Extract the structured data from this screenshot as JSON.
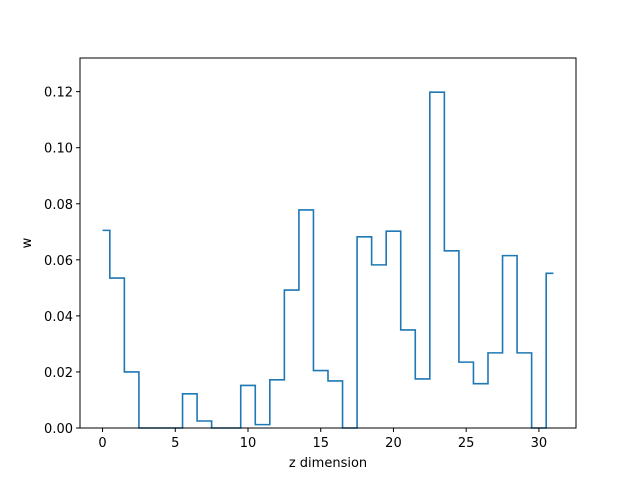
{
  "chart_data": {
    "type": "step",
    "title": "",
    "xlabel": "z dimension",
    "ylabel": "w",
    "xlim": [
      -1.55,
      32.55
    ],
    "ylim": [
      0,
      0.132
    ],
    "xticks": [
      0,
      5,
      10,
      15,
      20,
      25,
      30
    ],
    "xtick_labels": [
      "0",
      "5",
      "10",
      "15",
      "20",
      "25",
      "30"
    ],
    "yticks": [
      0.0,
      0.02,
      0.04,
      0.06,
      0.08,
      0.1,
      0.12
    ],
    "ytick_labels": [
      "0.00",
      "0.02",
      "0.04",
      "0.06",
      "0.08",
      "0.10",
      "0.12"
    ],
    "step_where": "mid",
    "line_color": "#1f77b4",
    "grid": false,
    "series": [
      {
        "x": [
          0,
          1,
          2,
          3,
          4,
          5,
          6,
          7,
          8,
          9,
          10,
          11,
          12,
          13,
          14,
          15,
          16,
          17,
          18,
          19,
          20,
          21,
          22,
          23,
          24,
          25,
          26,
          27,
          28,
          29,
          30,
          31
        ],
        "values": [
          0.0705,
          0.0535,
          0.02,
          0.0,
          0.0,
          0.0,
          0.0122,
          0.0025,
          0.0,
          0.0,
          0.0152,
          0.0012,
          0.0172,
          0.0492,
          0.0778,
          0.0205,
          0.0168,
          0.0,
          0.0682,
          0.0582,
          0.0702,
          0.035,
          0.0175,
          0.1198,
          0.0632,
          0.0235,
          0.0158,
          0.0268,
          0.0615,
          0.0268,
          0.0,
          0.0552
        ]
      }
    ]
  }
}
